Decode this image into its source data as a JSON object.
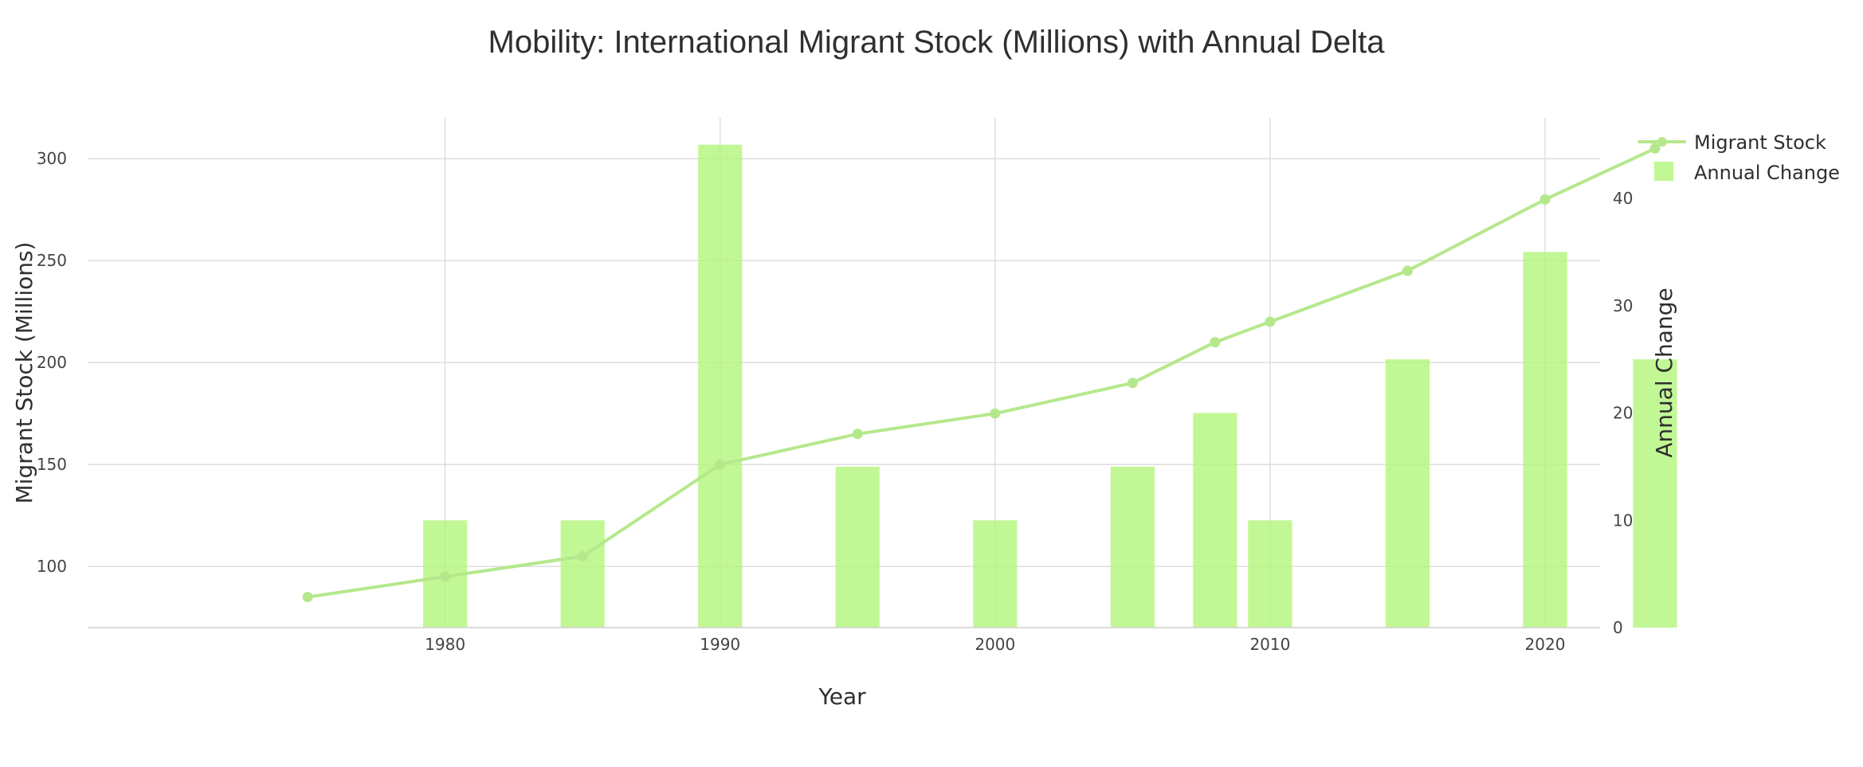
{
  "chart_data": {
    "type": "bar",
    "title": "Mobility: International Migrant Stock (Millions) with Annual Delta",
    "xlabel": "Year",
    "ylabel": "Migrant Stock (Millions)",
    "y2label": "Annual Change",
    "xlim": [
      1967,
      2022
    ],
    "ylim": [
      70,
      320
    ],
    "y2lim": [
      0,
      47.5
    ],
    "xticks": [
      1980,
      1990,
      2000,
      2010,
      2020
    ],
    "yticks": [
      100,
      150,
      200,
      250,
      300
    ],
    "y2ticks": [
      0,
      10,
      20,
      30,
      40
    ],
    "grid": true,
    "legend_position": "top-right",
    "series": [
      {
        "name": "Migrant Stock",
        "type": "line+markers",
        "axis": "y",
        "x": [
          1975,
          1980,
          1985,
          1990,
          1995,
          2000,
          2005,
          2008,
          2010,
          2015,
          2020,
          2024
        ],
        "values": [
          85,
          95,
          105,
          150,
          165,
          175,
          190,
          210,
          220,
          245,
          280,
          305
        ],
        "color": "#b5e88c"
      },
      {
        "name": "Annual Change",
        "type": "bar",
        "axis": "y2",
        "x": [
          1980,
          1985,
          1990,
          1995,
          2000,
          2005,
          2008,
          2010,
          2015,
          2020,
          2024
        ],
        "values": [
          10,
          10,
          45,
          15,
          10,
          15,
          20,
          10,
          25,
          35,
          25
        ],
        "color": "#b3f57a"
      }
    ]
  }
}
